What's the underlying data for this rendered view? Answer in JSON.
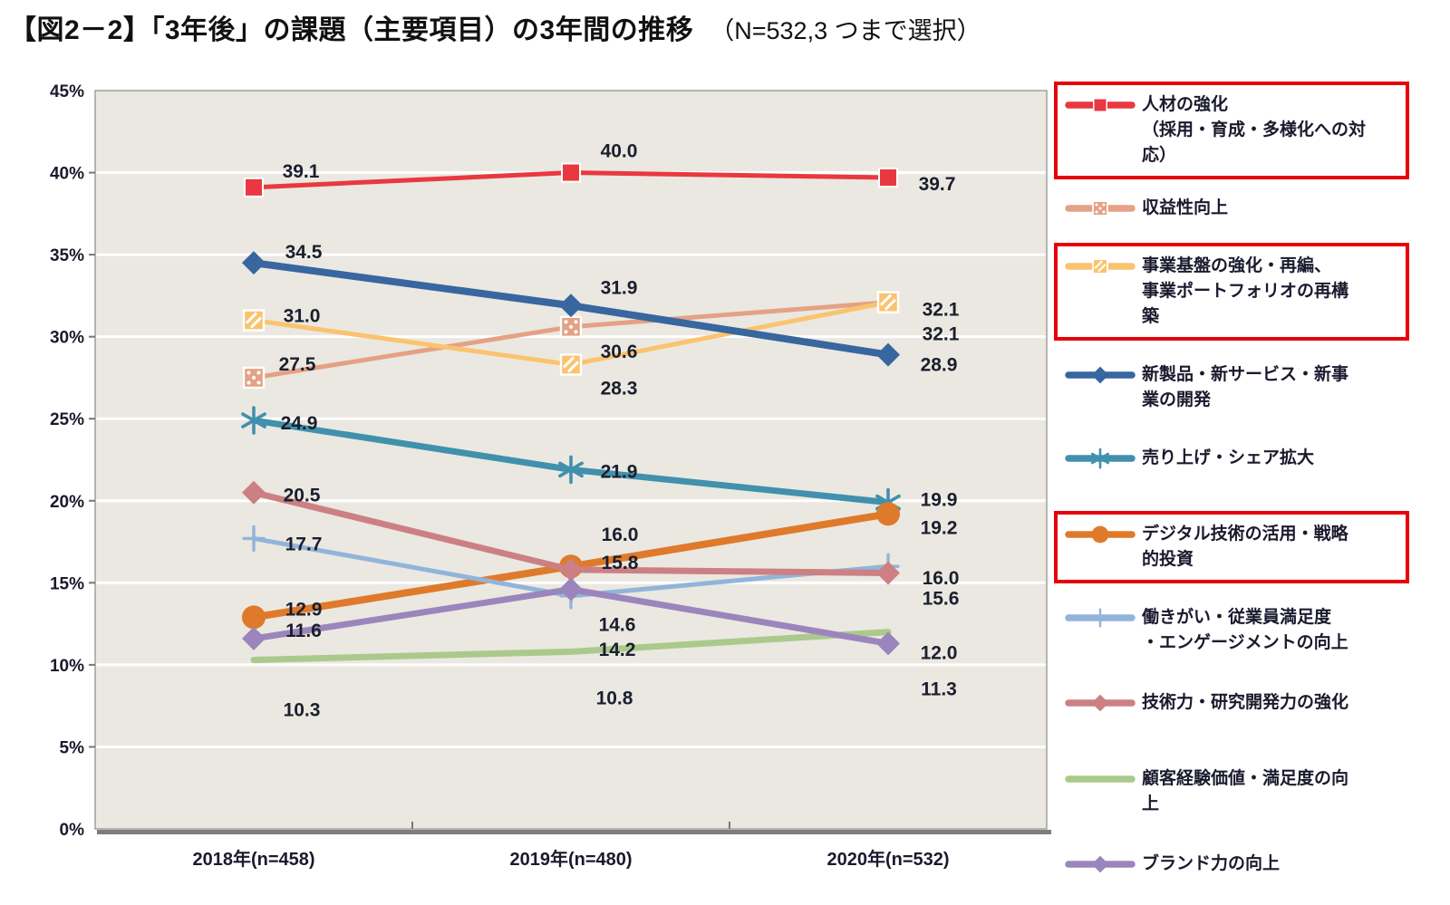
{
  "title": {
    "main": "【図2－2】「3年後」の課題（主要項目）の3年間の推移",
    "note": "（N=532,3 つまで選択）"
  },
  "chart_data": {
    "type": "line",
    "categories": [
      "2018年(n=458)",
      "2019年(n=480)",
      "2020年(n=532)"
    ],
    "ylim": [
      0,
      45
    ],
    "ytick_step": 5,
    "ytick_suffix": "%",
    "grid": true,
    "legend_position": "right",
    "colors": {
      "plot_bg": "#eae8e0",
      "gridline": "#ffffff",
      "plot_border": "#9a9a9a",
      "plot_shadow": "#7d7d7d",
      "data_label": "#1a1f2e",
      "axis_label": "#1a1a2e",
      "highlight_box": "#e8000b"
    },
    "series": [
      {
        "name": "人材の強化\n（採用・育成・多様化への対\n応）",
        "values": [
          39.1,
          40.0,
          39.7
        ],
        "color": "#e9383f",
        "marker": "square",
        "line_width": 5,
        "highlighted": true,
        "label_offsets": [
          [
            52,
            -18
          ],
          [
            53,
            -24
          ],
          [
            54,
            7
          ]
        ]
      },
      {
        "name": "収益性向上",
        "values": [
          27.5,
          30.6,
          32.1
        ],
        "color": "#e5a185",
        "marker": "square-dotted",
        "line_width": 5,
        "highlighted": false,
        "label_offsets": [
          [
            48,
            -15
          ],
          [
            53,
            27
          ],
          [
            58,
            8
          ]
        ]
      },
      {
        "name": "事業基盤の強化・再編、\n事業ポートフォリオの再構\n築",
        "values": [
          31.0,
          28.3,
          32.1
        ],
        "color": "#fac36f",
        "marker": "square-hatched",
        "line_width": 5,
        "highlighted": true,
        "label_offsets": [
          [
            53,
            -5
          ],
          [
            53,
            26
          ],
          [
            58,
            35
          ]
        ]
      },
      {
        "name": "新製品・新サービス・新事\n業の開発",
        "values": [
          34.5,
          31.9,
          28.9
        ],
        "color": "#38669f",
        "marker": "diamond",
        "line_width": 8,
        "highlighted": false,
        "label_offsets": [
          [
            55,
            -12
          ],
          [
            53,
            -20
          ],
          [
            56,
            11
          ]
        ]
      },
      {
        "name": "売り上げ・シェア拡大",
        "values": [
          24.9,
          21.9,
          19.9
        ],
        "color": "#4190ad",
        "marker": "asterisk",
        "line_width": 7,
        "highlighted": false,
        "label_offsets": [
          [
            50,
            3
          ],
          [
            53,
            2
          ],
          [
            56,
            -3
          ]
        ]
      },
      {
        "name": "デジタル技術の活用・戦略\n的投資",
        "values": [
          12.9,
          16.0,
          19.2
        ],
        "color": "#df7a2b",
        "marker": "circle",
        "line_width": 8,
        "highlighted": true,
        "label_offsets": [
          [
            55,
            -9
          ],
          [
            54,
            -35
          ],
          [
            56,
            15
          ]
        ]
      },
      {
        "name": "働きがい・従業員満足度\n・エンゲージメントの向上",
        "values": [
          17.7,
          14.2,
          16.0
        ],
        "color": "#92b4da",
        "marker": "plus",
        "line_width": 5,
        "highlighted": false,
        "label_offsets": [
          [
            55,
            6
          ],
          [
            51,
            59
          ],
          [
            58,
            13
          ]
        ]
      },
      {
        "name": "技術力・研究開発力の強化",
        "values": [
          20.5,
          15.8,
          15.6
        ],
        "color": "#cc8083",
        "marker": "diamond",
        "line_width": 7,
        "highlighted": false,
        "label_offsets": [
          [
            53,
            3
          ],
          [
            54,
            -8
          ],
          [
            58,
            28
          ]
        ]
      },
      {
        "name": "顧客経験価値・満足度の向\n上",
        "values": [
          10.3,
          10.8,
          12.0
        ],
        "color": "#abc98c",
        "marker": "none",
        "line_width": 7,
        "highlighted": false,
        "label_offsets": [
          [
            53,
            55
          ],
          [
            48,
            51
          ],
          [
            56,
            23
          ]
        ]
      },
      {
        "name": "ブランド力の向上",
        "values": [
          11.6,
          14.6,
          11.3
        ],
        "color": "#9c85bd",
        "marker": "diamond",
        "line_width": 7,
        "highlighted": false,
        "label_offsets": [
          [
            55,
            -9
          ],
          [
            51,
            39
          ],
          [
            56,
            50
          ]
        ]
      }
    ]
  }
}
